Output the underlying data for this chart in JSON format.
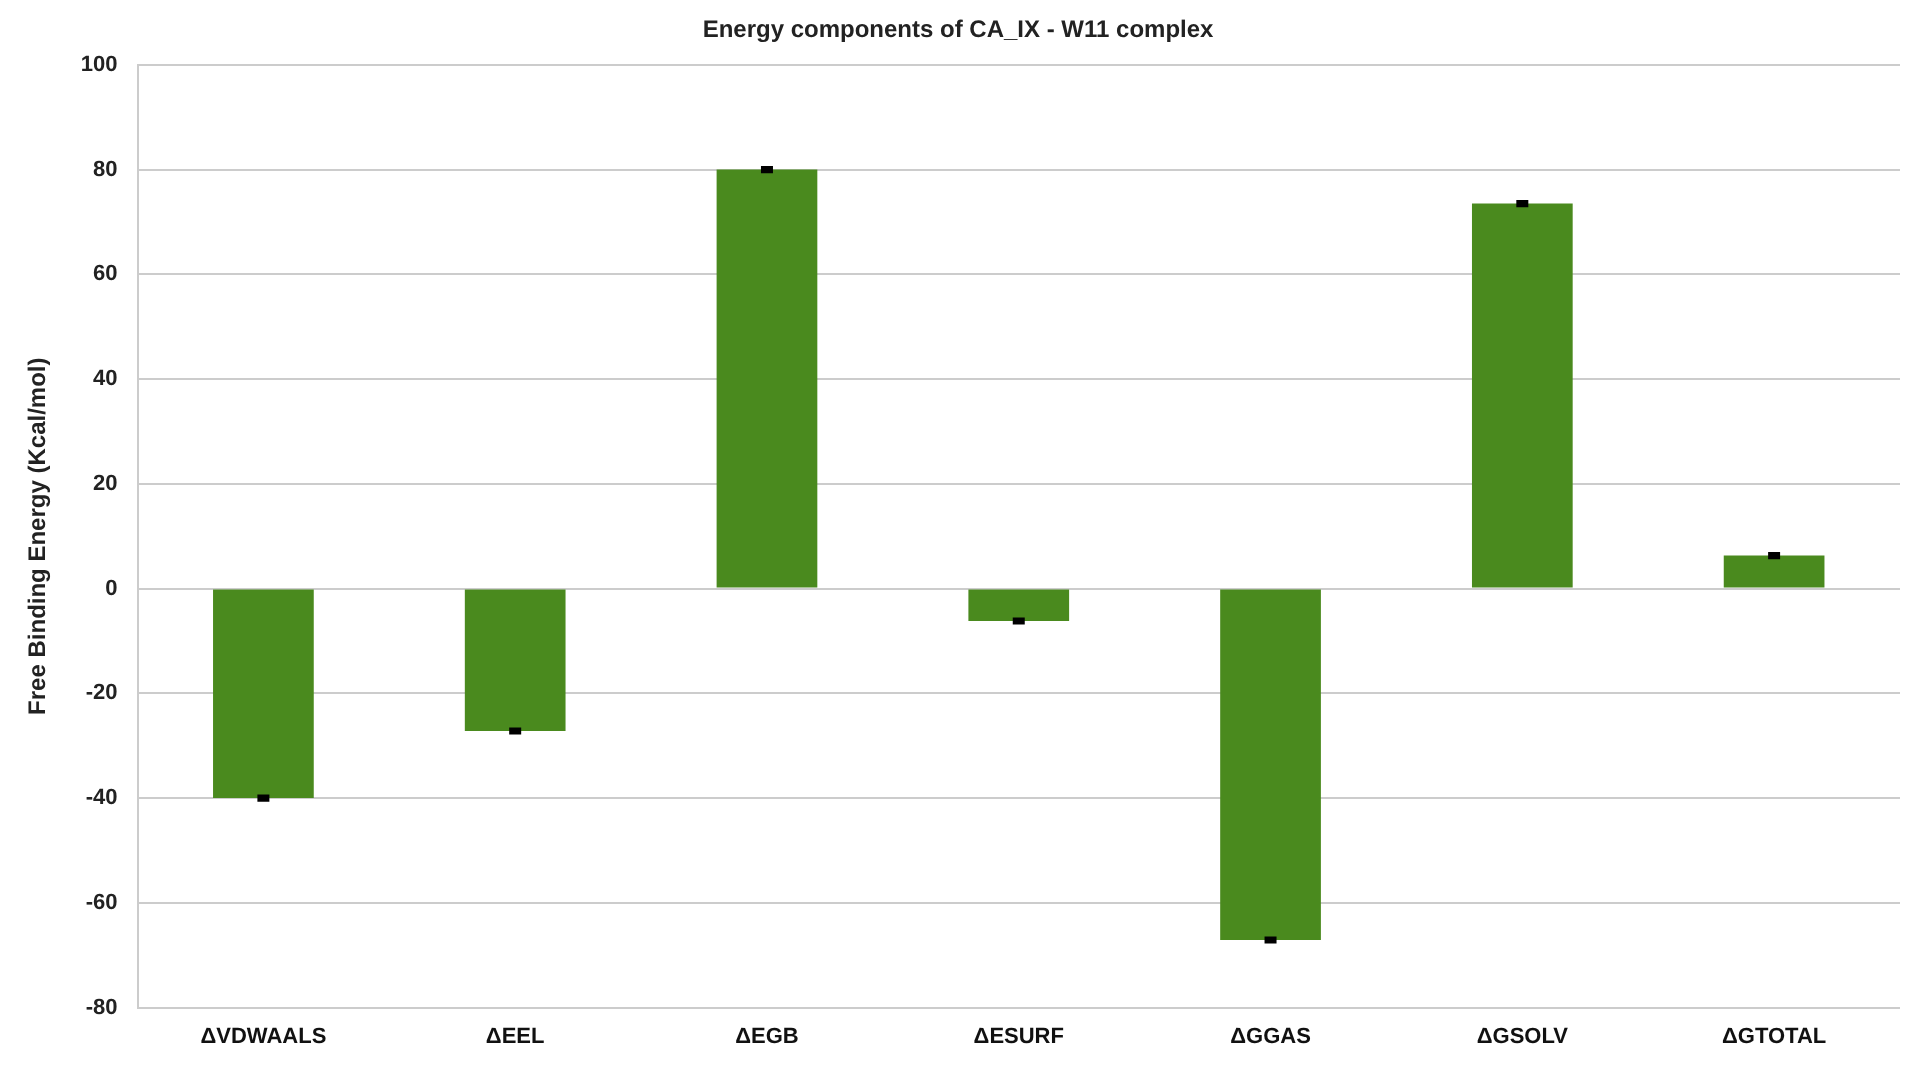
{
  "chart_data": {
    "type": "bar",
    "title": "Energy components of CA_IX - W11 complex",
    "ylabel": "Free Binding Energy (Kcal/mol)",
    "categories": [
      "ΔVDWAALS",
      "ΔEEL",
      "ΔEGB",
      "ΔESURF",
      "ΔGGAS",
      "ΔGSOLV",
      "ΔGTOTAL"
    ],
    "values": [
      -40,
      -27.2,
      80,
      -6.2,
      -67.1,
      73.5,
      6.3
    ],
    "errors": [
      0.3,
      0.3,
      0.3,
      0.3,
      0.3,
      0.3,
      0.3
    ],
    "color": "#4a8a1e",
    "ylim": [
      -80,
      100
    ],
    "yticks": [
      -80,
      -60,
      -40,
      -20,
      0,
      20,
      40,
      60,
      80,
      100
    ],
    "grid": "y",
    "legend": false
  }
}
